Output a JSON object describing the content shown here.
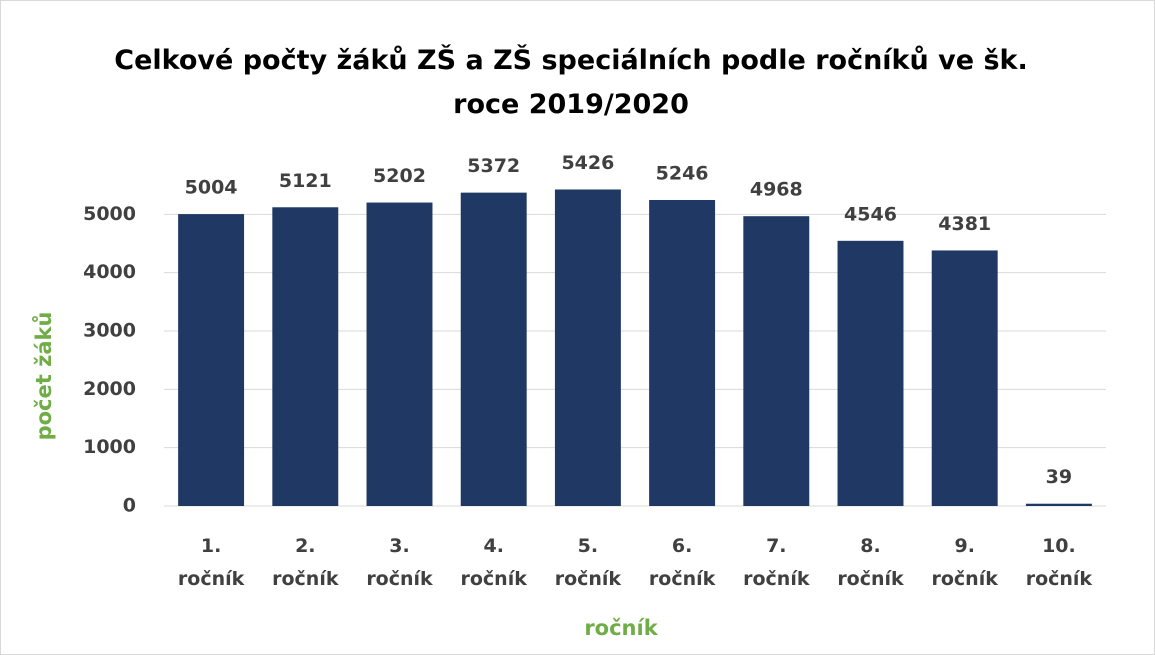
{
  "chart_data": {
    "type": "bar",
    "title": "Celkové počty žáků ZŠ a ZŠ speciálních podle ročníků ve šk. roce 2019/2020",
    "x_label": "ročník",
    "y_label": "počet žáků",
    "categories": [
      "1. ročník",
      "2. ročník",
      "3. ročník",
      "4. ročník",
      "5. ročník",
      "6. ročník",
      "7. ročník",
      "8. ročník",
      "9. ročník",
      "10. ročník"
    ],
    "values": [
      5004,
      5121,
      5202,
      5372,
      5426,
      5246,
      4968,
      4546,
      4381,
      39
    ],
    "color": "#1f3864",
    "ylim": [
      0,
      6000
    ],
    "yticks": [
      0,
      1000,
      2000,
      3000,
      4000,
      5000
    ],
    "grid": true
  }
}
